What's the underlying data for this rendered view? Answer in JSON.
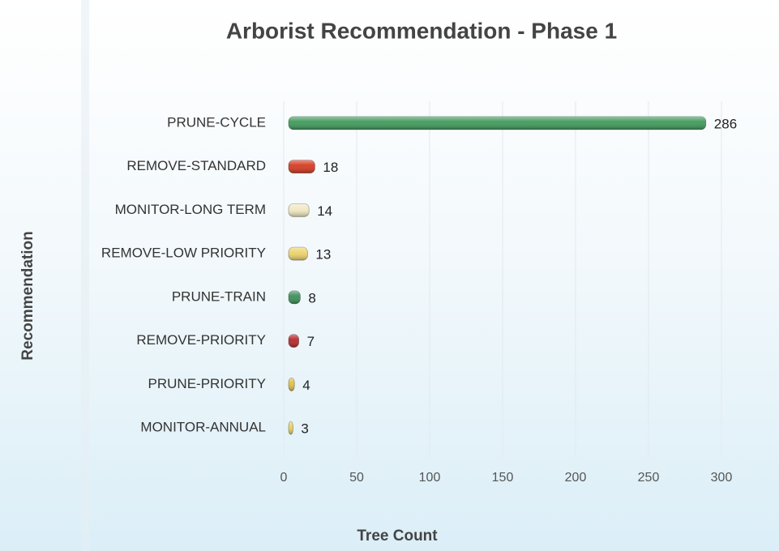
{
  "chart_data": {
    "type": "barh",
    "title": "Arborist Recommendation - Phase 1",
    "xlabel": "Tree Count",
    "ylabel": "Recommendation",
    "categories": [
      "PRUNE-CYCLE",
      "REMOVE-STANDARD",
      "MONITOR-LONG TERM",
      "REMOVE-LOW PRIORITY",
      "PRUNE-TRAIN",
      "REMOVE-PRIORITY",
      "PRUNE-PRIORITY",
      "MONITOR-ANNUAL"
    ],
    "values": [
      286,
      18,
      14,
      13,
      8,
      7,
      4,
      3
    ],
    "colors": [
      "#3f9a5a",
      "#d6391f",
      "#f1e9c2",
      "#eed36c",
      "#3c8f57",
      "#b8282a",
      "#e3bf45",
      "#e9cf5e"
    ],
    "xlim": [
      0,
      300
    ],
    "xticks": [
      0,
      50,
      100,
      150,
      200,
      250,
      300
    ],
    "grid": true
  }
}
